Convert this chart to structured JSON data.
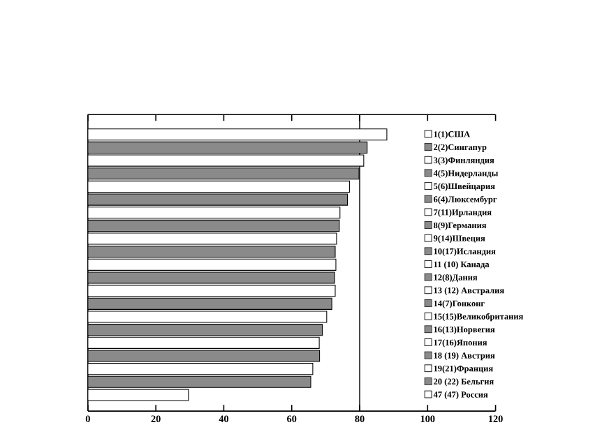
{
  "chart_data": {
    "type": "bar",
    "orientation": "horizontal",
    "categories": [
      "1(1)США",
      "2(2)Сингапур",
      "3(3)Финляндия",
      "4(5)Нидерланды",
      "5(6)Швейцария",
      "6(4)Люксембург",
      "7(11)Ирландия",
      "8(9)Германия",
      "9(14)Швеция",
      "10(17)Исландия",
      "11 (10) Канада",
      "12(8)Дания",
      "13 (12) Австралия",
      "14(7)Гонконг",
      "15(15)Великобритания",
      "16(13)Норвегия",
      "17(16)Япония",
      "18 (19) Австрия",
      "19(21)Франция",
      "20 (22) Бельгия",
      "47 (47) Россия"
    ],
    "values": [
      88,
      82.2,
      81.2,
      79.8,
      77,
      76.4,
      74.2,
      74,
      73.2,
      72.8,
      73,
      72.6,
      72.8,
      71.8,
      70.3,
      69,
      68.1,
      68.2,
      66.2,
      65.6,
      29.6
    ],
    "colors": [
      "#ffffff",
      "#8a8a8a",
      "#ffffff",
      "#8a8a8a",
      "#ffffff",
      "#8a8a8a",
      "#ffffff",
      "#8a8a8a",
      "#ffffff",
      "#8a8a8a",
      "#ffffff",
      "#8a8a8a",
      "#ffffff",
      "#8a8a8a",
      "#ffffff",
      "#8a8a8a",
      "#ffffff",
      "#8a8a8a",
      "#ffffff",
      "#8a8a8a",
      "#ffffff"
    ],
    "xlim": [
      0,
      120
    ],
    "xticks": [
      0,
      20,
      40,
      60,
      80,
      100,
      120
    ],
    "ref_lines": [
      {
        "axis": "x",
        "value": 80
      }
    ],
    "tick_labels": "x"
  }
}
